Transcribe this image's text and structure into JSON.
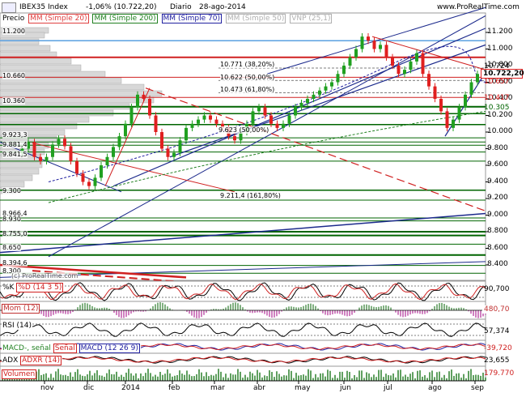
{
  "header": {
    "symbol": "IBEX35 Index",
    "change": "-1,06% (10.722,20)",
    "period": "Diario",
    "date": "28-ago-2014",
    "site": "www.ProRealTime.com"
  },
  "legend": {
    "precio": "Precio",
    "items": [
      {
        "label": "MM (Simple 20)",
        "color": "#e04040"
      },
      {
        "label": "MM (Simple 200)",
        "color": "#208020"
      },
      {
        "label": "MM (Simple 70)",
        "color": "#2020a0"
      },
      {
        "label": "MM (Simple 50)",
        "color": "#b0b0b0"
      },
      {
        "label": "VNP (25,1)",
        "color": "#b0b0b0"
      }
    ]
  },
  "price_axis": {
    "ticks": [
      "11.200",
      "11.000",
      "10.800",
      "10.600",
      "10.400",
      "10.200",
      "10.000",
      "9.800",
      "9.600",
      "9.400",
      "9.200",
      "9.000",
      "8.800",
      "8.600",
      "8.400"
    ],
    "current": "10.722,20",
    "tags_red": [
      "10.724"
    ],
    "tags_plain": [
      "10.657",
      "10.417",
      "10.305"
    ]
  },
  "fib_labels": [
    "10.771 (38,20%)",
    "10.622 (50,00%)",
    "10.473 (61,80%)",
    "9.211,4 (161,80%)",
    "9.623 (50,00%)"
  ],
  "left_levels": [
    "11.200",
    "10.660",
    "10.360",
    "9.923,3",
    "9.881,4",
    "9.841,5",
    "9.300",
    "8.966,4",
    "8.930",
    "8.755,0",
    "8.650",
    "8.394,6",
    "8.300"
  ],
  "watermark": "(c) ProRealTime.com",
  "indicators": [
    {
      "label": "%K",
      "label2": "%D (14 3 5)",
      "value": "90,700"
    },
    {
      "label": "Mom (12)",
      "value": "480,70"
    },
    {
      "label": "RSI (14)",
      "value": "57,374"
    },
    {
      "label": "MACD-, señal",
      "label2": "Señal",
      "label3": "MACD (12 26 9)",
      "value": "-39,720"
    },
    {
      "label": "ADX",
      "label2": "ADXR (14)",
      "value": "23,655"
    },
    {
      "label": "Volumen",
      "value": "179.770"
    }
  ],
  "months": [
    "nov",
    "dic",
    "2014",
    "feb",
    "mar",
    "abr",
    "may",
    "jun",
    "jul",
    "ago",
    "sep"
  ],
  "colors": {
    "up": "#20a020",
    "down": "#e02020",
    "trend_blue": "#1c2a8c",
    "trend_red": "#d02020",
    "green_line": "#006400"
  }
}
